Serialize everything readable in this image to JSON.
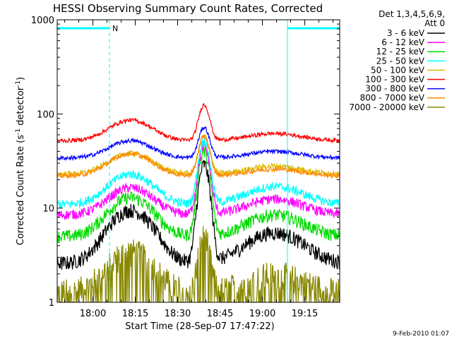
{
  "chart_data": {
    "type": "line",
    "title": "HESSI Observing Summary Count Rates, Corrected",
    "xlabel": "Start Time (28-Sep-07 17:47:22)",
    "ylabel_main": "Corrected Count Rate (s",
    "ylabel_sup1": "-1",
    "ylabel_mid": " detector",
    "ylabel_sup2": "-1",
    "ylabel_end": ")",
    "yscale": "log",
    "ylim": [
      1,
      1000
    ],
    "xlim_minutes": [
      0,
      100
    ],
    "xticks": [
      "18:00",
      "18:15",
      "18:30",
      "18:45",
      "19:00",
      "19:15"
    ],
    "yticks": [
      "1",
      "10",
      "100",
      "1000"
    ],
    "legend_header": [
      "Det 1,3,4,5,6,9,",
      "Att 0"
    ],
    "legend_placement": "right",
    "night_marker": "N",
    "footer": "9-Feb-2010 01:07",
    "markers": {
      "night_bar": {
        "start_min": 0,
        "end_min": 18.5
      },
      "saa_bar": {
        "start_min": 81.5,
        "end_min": 100
      },
      "lines_cyan": [
        0,
        81.5
      ],
      "lines_dashed": [
        18.5,
        100
      ]
    },
    "peak_minutes": 52,
    "series": [
      {
        "name": "3 - 6 keV",
        "color": "#000000",
        "base": 2.6,
        "hump": 9.5,
        "peak": 29,
        "late": 5.5,
        "noise": 0.18
      },
      {
        "name": "6 - 12 keV",
        "color": "#ff00ff",
        "base": 8.5,
        "hump": 16.5,
        "peak": 46,
        "late": 12.5,
        "noise": 0.12
      },
      {
        "name": "12 - 25 keV",
        "color": "#00dd00",
        "base": 5.0,
        "hump": 13,
        "peak": 40,
        "late": 8.5,
        "noise": 0.16
      },
      {
        "name": "25 - 50 keV",
        "color": "#00ffff",
        "base": 11,
        "hump": 23,
        "peak": 52,
        "late": 17,
        "noise": 0.11
      },
      {
        "name": "50 - 100 keV",
        "color": "#ddbb00",
        "base": 23,
        "hump": 38,
        "peak": 58,
        "late": 28,
        "noise": 0.07
      },
      {
        "name": "100 - 300 keV",
        "color": "#ff0000",
        "base": 52,
        "hump": 86,
        "peak": 125,
        "late": 62,
        "noise": 0.05
      },
      {
        "name": "300 - 800 keV",
        "color": "#0000ff",
        "base": 34,
        "hump": 52,
        "peak": 72,
        "late": 40,
        "noise": 0.05
      },
      {
        "name": "800 - 7000 keV",
        "color": "#ff8800",
        "base": 22,
        "hump": 38,
        "peak": 58,
        "late": 26,
        "noise": 0.06
      },
      {
        "name": "7000 - 20000 keV",
        "color": "#888800",
        "base": 1.3,
        "hump": 3.5,
        "peak": 5,
        "late": 2,
        "noise": 0.35
      }
    ]
  }
}
